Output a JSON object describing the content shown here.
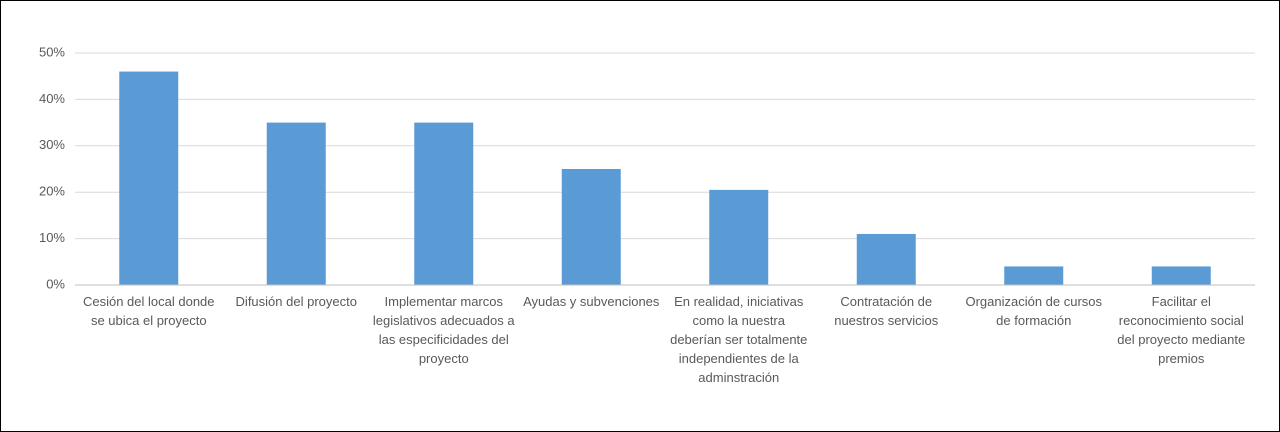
{
  "chart_data": {
    "type": "bar",
    "categories": [
      "Cesión del local donde se ubica el proyecto",
      "Difusión del proyecto",
      "Implementar marcos legislativos adecuados a las especificidades del proyecto",
      "Ayudas y subvenciones",
      "En realidad, iniciativas como la nuestra deberían ser totalmente independientes de la adminstración",
      "Contratación de nuestros servicios",
      "Organización de cursos de formación",
      "Facilitar el reconocimiento social del proyecto mediante premios"
    ],
    "values": [
      46,
      35,
      35,
      25,
      20.5,
      11,
      4,
      4
    ],
    "color": "#5b9bd5",
    "ylim": [
      0,
      50
    ],
    "yticks": [
      {
        "value": 0,
        "label": "0%"
      },
      {
        "value": 10,
        "label": "10%"
      },
      {
        "value": 20,
        "label": "20%"
      },
      {
        "value": 30,
        "label": "30%"
      },
      {
        "value": 40,
        "label": "40%"
      },
      {
        "value": 50,
        "label": "50%"
      }
    ],
    "grid": true
  }
}
